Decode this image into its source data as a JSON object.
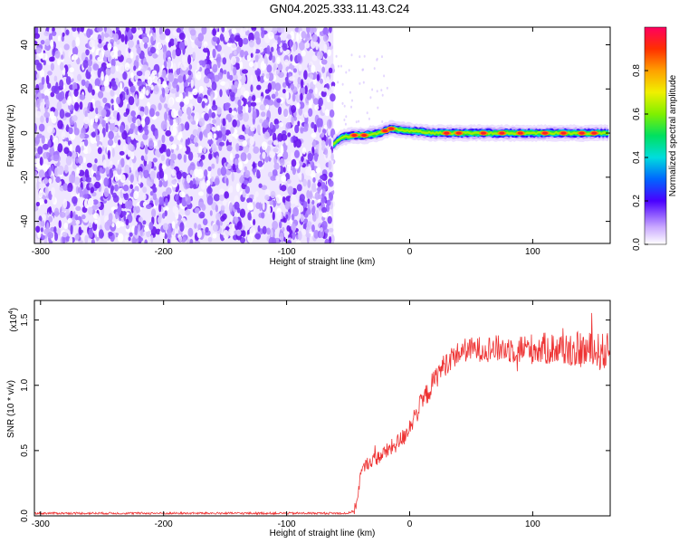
{
  "title": "GN04.2025.333.11.43.C24",
  "chart_data": [
    {
      "type": "heatmap",
      "xlabel": "Height of straight line (km)",
      "ylabel": "Frequency (Hz)",
      "xlim": [
        -305,
        163
      ],
      "ylim": [
        -50,
        48
      ],
      "xticks": [
        -300,
        -200,
        -100,
        0,
        100
      ],
      "yticks": [
        -40,
        -20,
        0,
        20,
        40
      ],
      "noise_region_x": [
        -305,
        -62
      ],
      "signal_band": {
        "x_start": -62,
        "center_x": [
          -62,
          -55,
          -45,
          -35,
          -25,
          -15,
          0,
          20,
          40,
          60,
          80,
          100,
          120,
          140,
          163
        ],
        "center_y": [
          -5,
          -2,
          -1,
          -1,
          0,
          2,
          1,
          0,
          0,
          0,
          0,
          0,
          0,
          0,
          0
        ],
        "peak_x": [
          -45,
          -37,
          -20,
          -15,
          30,
          40,
          60,
          75,
          90,
          110,
          125,
          140,
          150
        ]
      },
      "colorbar": {
        "label": "Normalized spectral amplitude",
        "ticks": [
          0.0,
          0.2,
          0.4,
          0.6,
          0.8
        ],
        "range": [
          0,
          1
        ]
      }
    },
    {
      "type": "line",
      "xlabel": "Height of straight line (km)",
      "ylabel": "SNR (10 * v/v)",
      "multiplier_label": "(x10",
      "multiplier_exp": "4",
      "xlim": [
        -305,
        163
      ],
      "ylim": [
        0,
        1.65
      ],
      "xticks": [
        -300,
        -200,
        -100,
        0,
        100
      ],
      "yticks": [
        0.0,
        0.5,
        1.0,
        1.5
      ],
      "series": [
        {
          "color": "#ee3333",
          "x": [
            -305,
            -200,
            -100,
            -50,
            -45,
            -42,
            -40,
            -35,
            -25,
            -15,
            -5,
            5,
            15,
            25,
            35,
            45,
            60,
            80,
            100,
            120,
            140,
            163
          ],
          "y": [
            0.02,
            0.02,
            0.02,
            0.02,
            0.04,
            0.15,
            0.32,
            0.4,
            0.45,
            0.52,
            0.6,
            0.78,
            0.95,
            1.12,
            1.22,
            1.27,
            1.28,
            1.28,
            1.28,
            1.28,
            1.27,
            1.25
          ]
        }
      ]
    }
  ]
}
